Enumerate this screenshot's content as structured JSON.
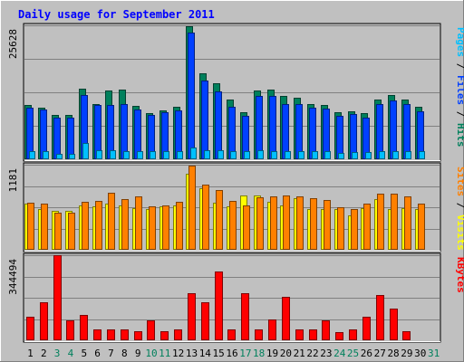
{
  "chart_data": {
    "type": "bar",
    "title": "Daily usage for September 2011",
    "x": [
      "1",
      "2",
      "3",
      "4",
      "5",
      "6",
      "7",
      "8",
      "9",
      "10",
      "11",
      "12",
      "13",
      "14",
      "15",
      "16",
      "17",
      "18",
      "19",
      "20",
      "21",
      "22",
      "23",
      "24",
      "25",
      "26",
      "27",
      "28",
      "29",
      "30",
      "31"
    ],
    "weekend_days": [
      "3",
      "4",
      "10",
      "11",
      "17",
      "18",
      "24",
      "25",
      "31"
    ],
    "panels": [
      {
        "id": "hits_files_pages",
        "ymax_label": "25628",
        "ylim": [
          0,
          25628
        ],
        "legend": [
          {
            "text": "Pages",
            "color": "#00C0FF"
          },
          {
            "text": " / ",
            "color": "#000000"
          },
          {
            "text": "Files",
            "color": "#0040FF"
          },
          {
            "text": " / ",
            "color": "#000000"
          },
          {
            "text": "Hits",
            "color": "#00805C"
          }
        ],
        "series": [
          {
            "name": "Hits",
            "color": "#00805C",
            "values": [
              10400,
              9900,
              8400,
              8400,
              13500,
              10600,
              13200,
              13300,
              10200,
              8900,
              9300,
              10000,
              25400,
              16500,
              14600,
              11400,
              9000,
              13200,
              13300,
              12200,
              11800,
              10600,
              10400,
              9000,
              9100,
              8800,
              11400,
              12300,
              11400,
              10000,
              null
            ]
          },
          {
            "name": "Files",
            "color": "#0040FF",
            "values": [
              9900,
              9500,
              7900,
              8000,
              12300,
              10400,
              10400,
              10600,
              9600,
              8500,
              9000,
              9400,
              24200,
              15000,
              13000,
              10000,
              8300,
              12100,
              12100,
              10500,
              10500,
              9900,
              9700,
              8300,
              8600,
              7900,
              10500,
              11200,
              10500,
              9200,
              null
            ]
          },
          {
            "name": "Pages",
            "color": "#00C0FF",
            "values": [
              1600,
              1500,
              1100,
              1100,
              3100,
              1700,
              1700,
              1600,
              1500,
              1500,
              1500,
              1500,
              2200,
              1800,
              1700,
              1600,
              1500,
              1700,
              1600,
              1600,
              1500,
              1500,
              1500,
              1200,
              1300,
              1300,
              1500,
              1500,
              1500,
              1500,
              null
            ]
          }
        ]
      },
      {
        "id": "visits_sites",
        "ymax_label": "1181",
        "ylim": [
          0,
          1181
        ],
        "legend": [
          {
            "text": "Sites",
            "color": "#FF8000"
          },
          {
            "text": " / ",
            "color": "#000000"
          },
          {
            "text": "Visits",
            "color": "#FFFF00"
          }
        ],
        "series": [
          {
            "name": "Visits",
            "color": "#FFFF00",
            "values": [
              640,
              560,
              540,
              540,
              620,
              600,
              640,
              620,
              580,
              560,
              600,
              620,
              1060,
              850,
              650,
              600,
              750,
              760,
              670,
              620,
              720,
              560,
              560,
              560,
              480,
              580,
              700,
              560,
              580,
              570,
              null
            ]
          },
          {
            "name": "Sites",
            "color": "#FF8000",
            "values": [
              650,
              640,
              520,
              520,
              660,
              680,
              790,
              700,
              740,
              600,
              610,
              670,
              1170,
              900,
              830,
              680,
              620,
              730,
              740,
              760,
              740,
              710,
              690,
              590,
              560,
              640,
              780,
              780,
              740,
              640,
              null
            ]
          }
        ]
      },
      {
        "id": "kbytes",
        "ymax_label": "344494",
        "ylim": [
          0,
          344494
        ],
        "legend": [
          {
            "text": "KBytes",
            "color": "#FF0000"
          }
        ],
        "series": [
          {
            "name": "KBytes",
            "color": "#FF0000",
            "values": [
              96000,
              154000,
              344000,
              80000,
              102000,
              44000,
              44000,
              44000,
              36000,
              80000,
              37000,
              44000,
              189000,
              154000,
              277000,
              44000,
              192000,
              44000,
              86000,
              177000,
              44000,
              44000,
              82000,
              32000,
              44000,
              96000,
              183000,
              127000,
              36000,
              null,
              null
            ]
          }
        ]
      }
    ]
  }
}
